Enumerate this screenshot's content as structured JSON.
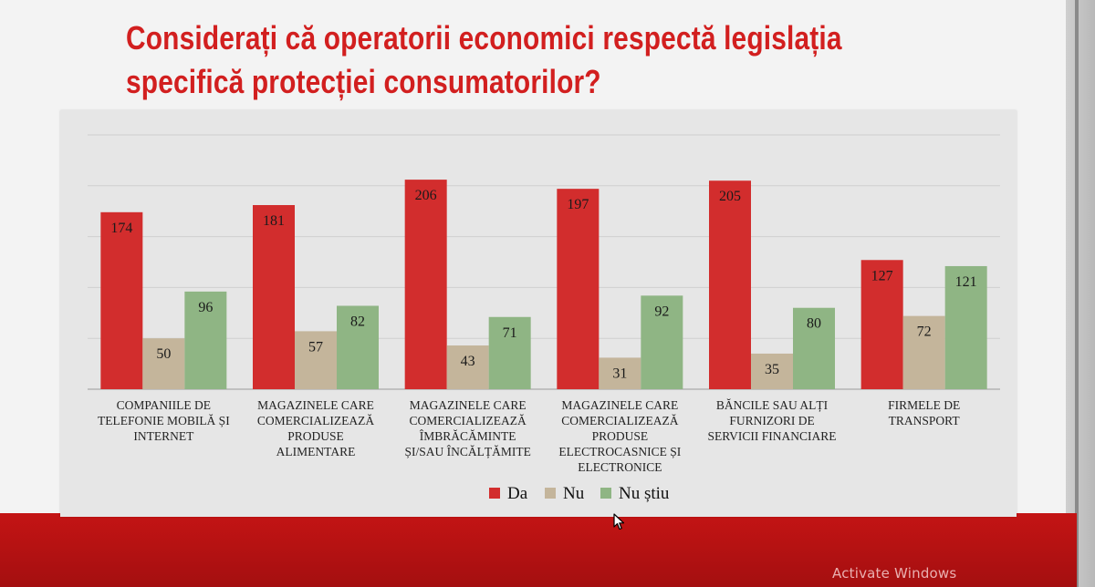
{
  "slide": {
    "title_lines": [
      "Considerați că operatorii economici respectă legislația",
      "specifică protecției consumatorilor?"
    ]
  },
  "watermark": "Activate Windows",
  "colors": {
    "title": "#d21f1f",
    "band": "#b71313",
    "chart_bg": "#e6e6e6"
  },
  "chart_data": {
    "type": "bar",
    "categories": [
      [
        "COMPANIILE DE",
        "TELEFONIE MOBILĂ ȘI",
        "INTERNET"
      ],
      [
        "MAGAZINELE CARE",
        "COMERCIALIZEAZĂ",
        "PRODUSE",
        "ALIMENTARE"
      ],
      [
        "MAGAZINELE CARE",
        "COMERCIALIZEAZĂ",
        "ÎMBRĂCĂMINTE",
        "ȘI/SAU ÎNCĂLȚĂMITE"
      ],
      [
        "MAGAZINELE CARE",
        "COMERCIALIZEAZĂ",
        "PRODUSE",
        "ELECTROCASNICE ȘI",
        "ELECTRONICE"
      ],
      [
        "BĂNCILE SAU ALȚI",
        "FURNIZORI DE",
        "SERVICII FINANCIARE"
      ],
      [
        "FIRMELE DE",
        "TRANSPORT"
      ]
    ],
    "series": [
      {
        "name": "Da",
        "color": "#d22d2d",
        "values": [
          174,
          181,
          206,
          197,
          205,
          127
        ]
      },
      {
        "name": "Nu",
        "color": "#c4b59b",
        "values": [
          50,
          57,
          43,
          31,
          35,
          72
        ]
      },
      {
        "name": "Nu știu",
        "color": "#8fb584",
        "values": [
          96,
          82,
          71,
          92,
          80,
          121
        ]
      }
    ],
    "ylim": [
      0,
      250
    ],
    "grid": true,
    "legend_position": "bottom"
  }
}
